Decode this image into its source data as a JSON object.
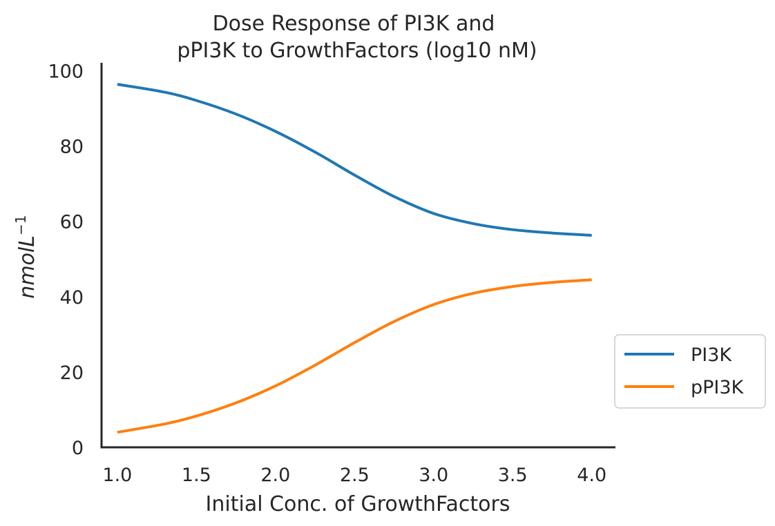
{
  "chart_data": {
    "type": "line",
    "title_lines": [
      "Dose Response of PI3K and",
      "pPI3K to GrowthFactors (log10 nM)"
    ],
    "xlabel": "Initial Conc. of GrowthFactors",
    "ylabel": "nmolL",
    "ylabel_sup": "−1",
    "xlim": [
      0.9,
      4.15
    ],
    "ylim": [
      0,
      101
    ],
    "xticks": [
      1.0,
      1.5,
      2.0,
      2.5,
      3.0,
      3.5,
      4.0
    ],
    "xtick_labels": [
      "1.0",
      "1.5",
      "2.0",
      "2.5",
      "3.0",
      "3.5",
      "4.0"
    ],
    "yticks": [
      0,
      20,
      40,
      60,
      80,
      100
    ],
    "ytick_labels": [
      "0",
      "20",
      "40",
      "60",
      "80",
      "100"
    ],
    "grid": false,
    "legend_position": "outside-right",
    "x": [
      1.0,
      1.3,
      1.5,
      1.75,
      2.0,
      2.25,
      2.5,
      2.75,
      3.0,
      3.25,
      3.5,
      3.75,
      4.0
    ],
    "series": [
      {
        "name": "PI3K",
        "color": "#1f77b4",
        "values": [
          96.4,
          94.3,
          92.1,
          88.5,
          83.9,
          78.4,
          72.3,
          66.6,
          62.1,
          59.4,
          57.8,
          56.9,
          56.3
        ]
      },
      {
        "name": "pPI3K",
        "color": "#ff7f0e",
        "values": [
          4.0,
          6.2,
          8.3,
          11.8,
          16.3,
          21.8,
          27.8,
          33.4,
          37.9,
          40.9,
          42.7,
          43.8,
          44.5
        ]
      }
    ]
  }
}
